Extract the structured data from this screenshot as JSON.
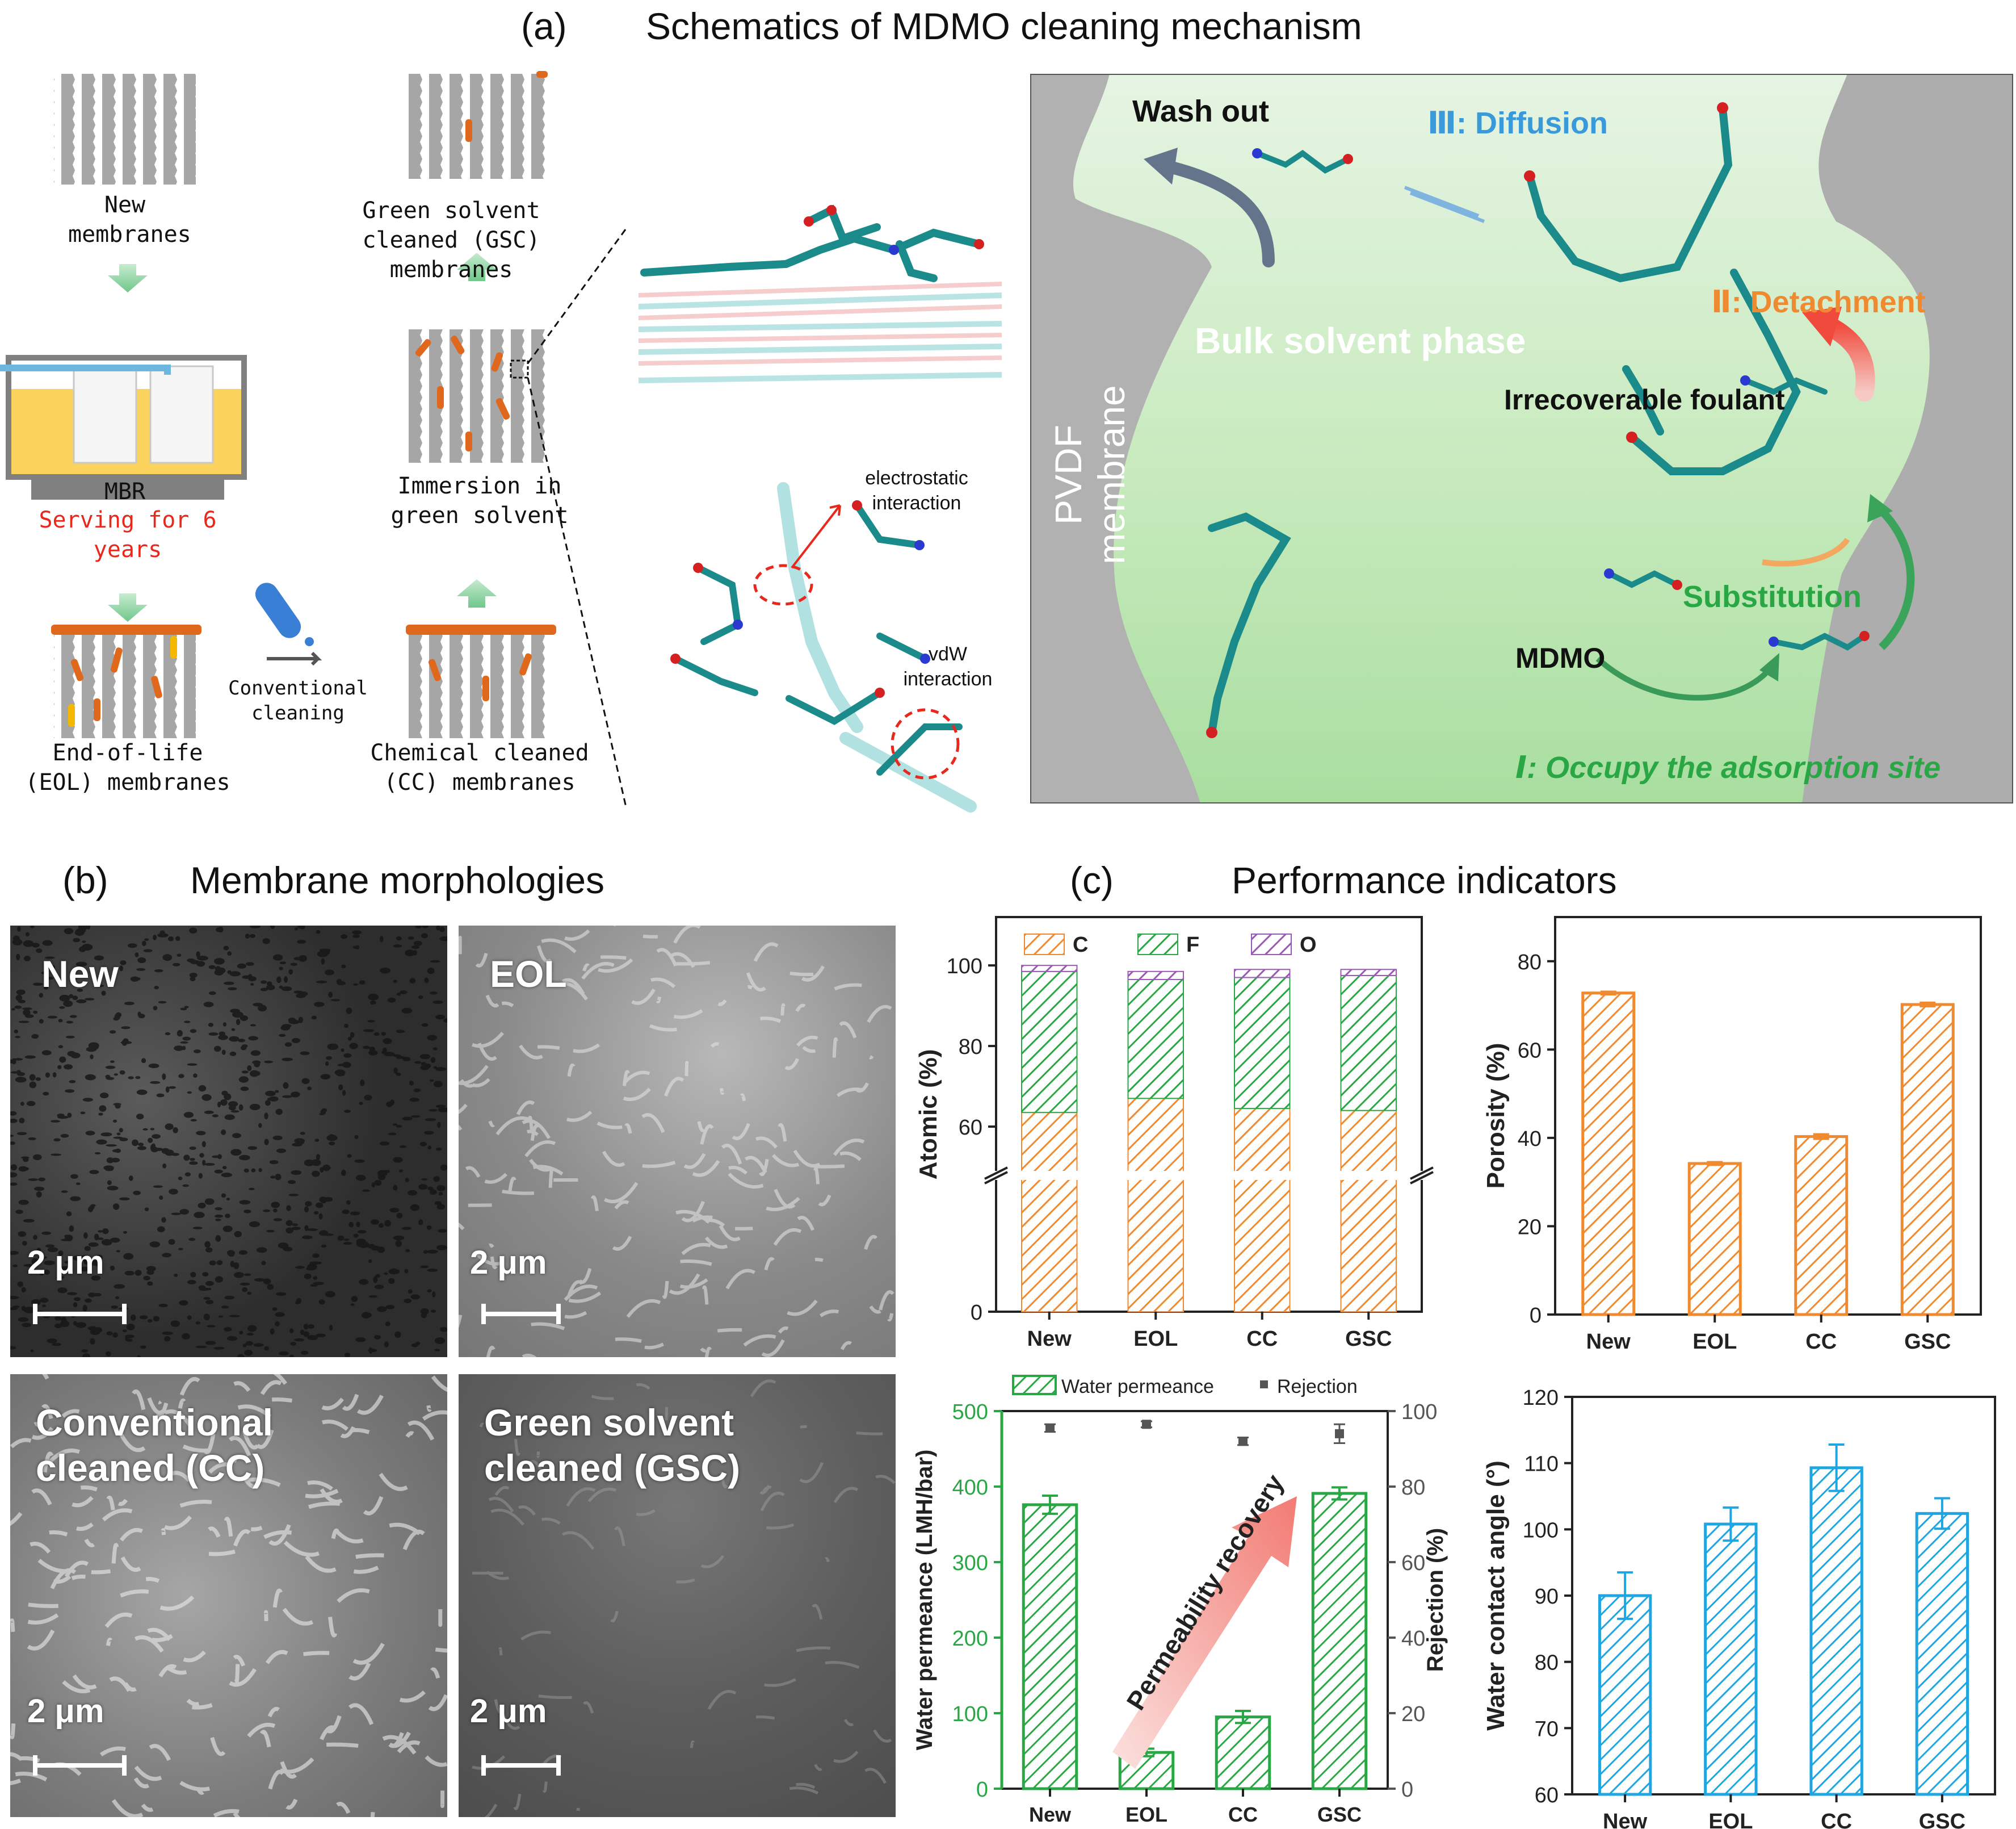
{
  "panel_a": {
    "label": "(a)",
    "title": "Schematics of MDMO cleaning mechanism",
    "flow": {
      "new": "New membranes",
      "mbr": "MBR",
      "serving": "Serving for 6 years",
      "eol": "End-of-life (EOL) membranes",
      "conventional": "Conventional cleaning",
      "cc": "Chemical cleaned (CC) membranes",
      "immersion": "Immersion in green solvent",
      "gsc": "Green solvent cleaned (GSC) membranes"
    },
    "interactions": {
      "electrostatic": "electrostatic interaction",
      "vdw": "vdW interaction"
    },
    "mechanism": {
      "wash_out": "Wash out",
      "diffusion": "Ⅲ: Diffusion",
      "detachment": "Ⅱ: Detachment",
      "bulk": "Bulk solvent phase",
      "pvdf": "PVDF membrane",
      "foulant": "Irrecoverable foulant",
      "substitution": "Substitution",
      "mdmo": "MDMO",
      "occupy": "Ⅰ: Occupy the adsorption site"
    },
    "colors": {
      "foulant": "#e0681c",
      "green": "#2aa745",
      "blue": "#3a9ad9",
      "red": "#e8281c",
      "orange": "#f08a30"
    }
  },
  "panel_b": {
    "label": "(b)",
    "title": "Membrane morphologies",
    "tiles": [
      "New",
      "EOL",
      "Conventional cleaned (CC)",
      "Green solvent cleaned (GSC)"
    ],
    "scale": "2 μm"
  },
  "panel_c": {
    "label": "(c)",
    "title": "Performance indicators"
  },
  "chart_data": [
    {
      "type": "bar",
      "stacked": true,
      "categories": [
        "New",
        "EOL",
        "CC",
        "GSC"
      ],
      "series": [
        {
          "name": "C",
          "values": [
            63.5,
            67,
            64.5,
            64
          ]
        },
        {
          "name": "F",
          "values": [
            35,
            29.5,
            32.5,
            33.5
          ]
        },
        {
          "name": "O",
          "values": [
            1.5,
            2,
            2,
            1.5
          ]
        }
      ],
      "ylabel": "Atomic (%)",
      "yticks": [
        0,
        60,
        80,
        100
      ],
      "axis_break": true,
      "legend": "top"
    },
    {
      "type": "bar",
      "categories": [
        "New",
        "EOL",
        "CC",
        "GSC"
      ],
      "values": [
        72.8,
        34.2,
        40.3,
        70.2
      ],
      "errors": [
        0.3,
        0.3,
        0.5,
        0.4
      ],
      "ylabel": "Porosity (%)",
      "ylim": [
        0,
        90
      ],
      "yticks": [
        0,
        20,
        40,
        60,
        80
      ]
    },
    {
      "type": "bar",
      "categories": [
        "New",
        "EOL",
        "CC",
        "GSC"
      ],
      "series": [
        {
          "name": "Water permeance",
          "values": [
            376,
            48,
            95,
            391
          ],
          "errors": [
            12,
            5,
            8,
            8
          ]
        },
        {
          "name": "Rejection",
          "values": [
            95.5,
            96.5,
            92,
            94
          ],
          "errors": [
            1,
            0.8,
            1,
            2.5
          ]
        }
      ],
      "ylabel": "Water permeance (LMH/bar)",
      "ylabel_right": "Rejection (%)",
      "ylim": [
        0,
        500
      ],
      "ylim_right": [
        0,
        100
      ],
      "yticks": [
        0,
        100,
        200,
        300,
        400,
        500
      ],
      "yticks_right": [
        0,
        20,
        40,
        60,
        80,
        100
      ],
      "annotation": "Permeability recovery",
      "legend": "top"
    },
    {
      "type": "bar",
      "categories": [
        "New",
        "EOL",
        "CC",
        "GSC"
      ],
      "values": [
        90,
        100.8,
        109.3,
        102.4
      ],
      "errors": [
        3.5,
        2.5,
        3.5,
        2.3
      ],
      "ylabel": "Water contact angle (°)",
      "ylim": [
        60,
        120
      ],
      "yticks": [
        60,
        70,
        80,
        90,
        100,
        110,
        120
      ]
    }
  ]
}
